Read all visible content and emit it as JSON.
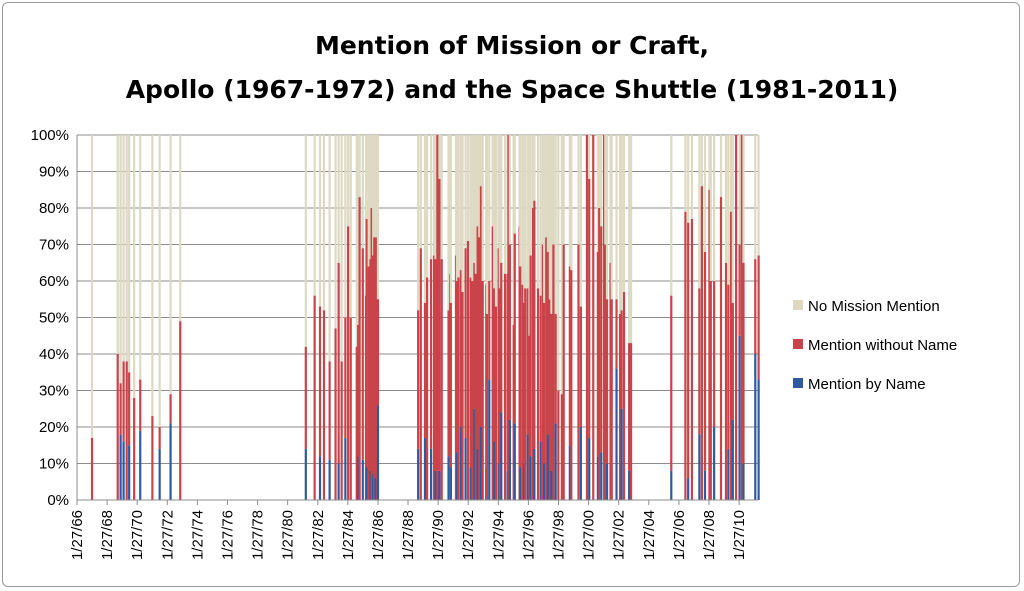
{
  "chart_data": {
    "type": "bar",
    "stacked": true,
    "percent_stacked": true,
    "title": [
      "Mention of Mission or Craft,",
      "Apollo (1967-1972) and the Space Shuttle (1981-2011)"
    ],
    "xlabel": "",
    "ylabel": "",
    "x_tick_labels": [
      "1/27/66",
      "1/27/68",
      "1/27/70",
      "1/27/72",
      "1/27/74",
      "1/27/76",
      "1/27/78",
      "1/27/80",
      "1/27/82",
      "1/27/84",
      "1/27/86",
      "1/27/88",
      "1/27/90",
      "1/27/92",
      "1/27/94",
      "1/27/96",
      "1/27/98",
      "1/27/00",
      "1/27/02",
      "1/27/04",
      "1/27/06",
      "1/27/08",
      "1/27/10"
    ],
    "x_range": [
      "1966-01-27",
      "2011-05-01"
    ],
    "y_tick_labels": [
      "0%",
      "10%",
      "20%",
      "30%",
      "40%",
      "50%",
      "60%",
      "70%",
      "80%",
      "90%",
      "100%"
    ],
    "ylim": [
      0,
      100
    ],
    "grid": true,
    "legend_position": "right",
    "series_order": [
      "Mention by Name",
      "Mention without Name",
      "No Mission Mention"
    ],
    "series_colors": {
      "Mention by Name": "#2e5aa0",
      "Mention without Name": "#c8444a",
      "No Mission Mention": "#ddd9c3"
    },
    "legend": [
      {
        "name": "No Mission Mention",
        "color": "#ddd9c3"
      },
      {
        "name": "Mention without Name",
        "color": "#c8444a"
      },
      {
        "name": "Mention by Name",
        "color": "#2e5aa0"
      }
    ],
    "series_values_format": "[date, Mention by Name %, Mention without Name %]; No Mission Mention = 100 - sum",
    "points": [
      [
        "1967-01-27",
        0,
        17
      ],
      [
        "1968-10-11",
        0,
        40
      ],
      [
        "1968-12-21",
        18,
        14
      ],
      [
        "1969-03-03",
        16,
        22
      ],
      [
        "1969-05-18",
        0,
        38
      ],
      [
        "1969-07-16",
        15,
        20
      ],
      [
        "1969-11-14",
        0,
        28
      ],
      [
        "1970-04-11",
        19,
        14
      ],
      [
        "1971-01-31",
        0,
        23
      ],
      [
        "1971-07-26",
        14,
        6
      ],
      [
        "1972-04-16",
        21,
        8
      ],
      [
        "1972-12-07",
        0,
        49
      ],
      [
        "1981-04-12",
        14,
        28
      ],
      [
        "1981-11-12",
        0,
        56
      ],
      [
        "1982-03-22",
        12,
        41
      ],
      [
        "1982-06-27",
        0,
        52
      ],
      [
        "1982-11-11",
        11,
        27
      ],
      [
        "1983-04-04",
        0,
        47
      ],
      [
        "1983-06-18",
        10,
        55
      ],
      [
        "1983-08-30",
        0,
        38
      ],
      [
        "1983-11-28",
        17,
        33
      ],
      [
        "1984-02-03",
        0,
        75
      ],
      [
        "1984-04-06",
        0,
        50
      ],
      [
        "1984-08-30",
        0,
        42
      ],
      [
        "1984-10-05",
        12,
        36
      ],
      [
        "1984-11-08",
        0,
        83
      ],
      [
        "1985-01-24",
        11,
        58
      ],
      [
        "1985-04-12",
        0,
        56
      ],
      [
        "1985-04-29",
        9,
        68
      ],
      [
        "1985-06-17",
        0,
        64
      ],
      [
        "1985-07-29",
        8,
        58
      ],
      [
        "1985-08-27",
        0,
        80
      ],
      [
        "1985-10-03",
        7,
        60
      ],
      [
        "1985-10-30",
        0,
        72
      ],
      [
        "1985-11-26",
        6,
        66
      ],
      [
        "1986-01-12",
        0,
        72
      ],
      [
        "1986-01-28",
        26,
        29
      ],
      [
        "1988-09-29",
        14,
        38
      ],
      [
        "1988-12-02",
        0,
        69
      ],
      [
        "1989-03-13",
        17,
        37
      ],
      [
        "1989-05-04",
        0,
        61
      ],
      [
        "1989-08-08",
        14,
        52
      ],
      [
        "1989-10-18",
        0,
        67
      ],
      [
        "1989-11-22",
        8,
        58
      ],
      [
        "1990-01-09",
        0,
        100
      ],
      [
        "1990-02-28",
        8,
        80
      ],
      [
        "1990-04-24",
        0,
        66
      ],
      [
        "1990-10-06",
        12,
        40
      ],
      [
        "1990-11-15",
        0,
        62
      ],
      [
        "1990-12-02",
        9,
        45
      ],
      [
        "1991-04-05",
        0,
        67
      ],
      [
        "1991-04-28",
        13,
        47
      ],
      [
        "1991-06-05",
        0,
        61
      ],
      [
        "1991-08-02",
        20,
        43
      ],
      [
        "1991-09-12",
        0,
        57
      ],
      [
        "1991-11-24",
        17,
        52
      ],
      [
        "1992-01-22",
        0,
        71
      ],
      [
        "1992-03-24",
        9,
        52
      ],
      [
        "1992-05-07",
        0,
        60
      ],
      [
        "1992-06-25",
        25,
        40
      ],
      [
        "1992-07-31",
        0,
        62
      ],
      [
        "1992-09-12",
        14,
        61
      ],
      [
        "1992-10-22",
        0,
        72
      ],
      [
        "1992-12-02",
        20,
        66
      ],
      [
        "1993-01-13",
        0,
        60
      ],
      [
        "1993-04-08",
        9,
        50
      ],
      [
        "1993-04-26",
        0,
        51
      ],
      [
        "1993-06-21",
        33,
        27
      ],
      [
        "1993-09-12",
        0,
        75
      ],
      [
        "1993-10-18",
        16,
        42
      ],
      [
        "1993-12-02",
        0,
        53
      ],
      [
        "1994-02-03",
        10,
        59
      ],
      [
        "1994-03-04",
        0,
        58
      ],
      [
        "1994-04-09",
        24,
        41
      ],
      [
        "1994-07-08",
        0,
        62
      ],
      [
        "1994-09-09",
        8,
        54
      ],
      [
        "1994-09-30",
        0,
        100
      ],
      [
        "1994-11-03",
        22,
        48
      ],
      [
        "1995-02-03",
        0,
        48
      ],
      [
        "1995-03-02",
        21,
        52
      ],
      [
        "1995-06-27",
        0,
        75
      ],
      [
        "1995-07-13",
        9,
        55
      ],
      [
        "1995-09-07",
        0,
        59
      ],
      [
        "1995-10-20",
        10,
        44
      ],
      [
        "1995-11-12",
        0,
        58
      ],
      [
        "1996-01-11",
        18,
        40
      ],
      [
        "1996-02-22",
        0,
        45
      ],
      [
        "1996-03-22",
        12,
        55
      ],
      [
        "1996-05-19",
        0,
        80
      ],
      [
        "1996-06-20",
        14,
        68
      ],
      [
        "1996-09-16",
        0,
        58
      ],
      [
        "1996-11-19",
        16,
        40
      ],
      [
        "1997-01-12",
        0,
        70
      ],
      [
        "1997-02-11",
        10,
        44
      ],
      [
        "1997-04-04",
        0,
        72
      ],
      [
        "1997-05-15",
        18,
        50
      ],
      [
        "1997-07-01",
        0,
        55
      ],
      [
        "1997-08-07",
        8,
        43
      ],
      [
        "1997-09-25",
        0,
        70
      ],
      [
        "1997-11-19",
        21,
        30
      ],
      [
        "1998-01-22",
        0,
        30
      ],
      [
        "1998-04-17",
        0,
        29
      ],
      [
        "1998-06-02",
        0,
        70
      ],
      [
        "1998-10-29",
        15,
        49
      ],
      [
        "1998-12-04",
        0,
        63
      ],
      [
        "1999-05-27",
        0,
        70
      ],
      [
        "1999-07-23",
        20,
        33
      ],
      [
        "1999-12-19",
        0,
        100
      ],
      [
        "2000-02-11",
        17,
        71
      ],
      [
        "2000-05-19",
        0,
        100
      ],
      [
        "2000-09-08",
        12,
        56
      ],
      [
        "2000-10-11",
        0,
        80
      ],
      [
        "2000-11-30",
        13,
        62
      ],
      [
        "2001-02-07",
        0,
        100
      ],
      [
        "2001-03-08",
        0,
        70
      ],
      [
        "2001-04-19",
        10,
        45
      ],
      [
        "2001-07-12",
        0,
        65
      ],
      [
        "2001-08-10",
        0,
        55
      ],
      [
        "2001-12-05",
        36,
        19
      ],
      [
        "2002-03-01",
        0,
        51
      ],
      [
        "2002-04-08",
        25,
        27
      ],
      [
        "2002-06-05",
        0,
        57
      ],
      [
        "2002-10-07",
        8,
        35
      ],
      [
        "2002-11-23",
        0,
        43
      ],
      [
        "2005-07-26",
        8,
        48
      ],
      [
        "2006-07-04",
        0,
        79
      ],
      [
        "2006-09-09",
        6,
        70
      ],
      [
        "2006-12-09",
        0,
        77
      ],
      [
        "2007-06-08",
        18,
        40
      ],
      [
        "2007-08-08",
        0,
        86
      ],
      [
        "2007-10-23",
        8,
        60
      ],
      [
        "2008-02-07",
        0,
        85
      ],
      [
        "2008-03-11",
        0,
        60
      ],
      [
        "2008-05-31",
        20,
        40
      ],
      [
        "2008-11-14",
        0,
        83
      ],
      [
        "2009-03-15",
        0,
        65
      ],
      [
        "2009-05-11",
        14,
        45
      ],
      [
        "2009-07-15",
        0,
        79
      ],
      [
        "2009-08-28",
        22,
        32
      ],
      [
        "2009-11-16",
        0,
        100
      ],
      [
        "2010-02-08",
        45,
        25
      ],
      [
        "2010-04-05",
        0,
        100
      ],
      [
        "2010-05-14",
        10,
        55
      ],
      [
        "2011-02-24",
        40,
        26
      ],
      [
        "2011-05-16",
        33,
        34
      ]
    ]
  }
}
